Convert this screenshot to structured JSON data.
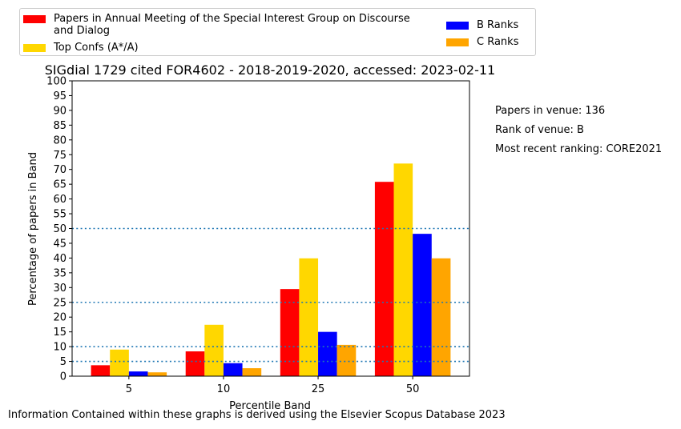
{
  "legend": {
    "items": [
      {
        "label": "Papers in Annual Meeting of the Special Interest Group on Discourse and Dialog",
        "color": "#ff0000"
      },
      {
        "label": "Top Confs (A*/A)",
        "color": "#ffd700"
      },
      {
        "label": "B Ranks",
        "color": "#0000ff"
      },
      {
        "label": "C Ranks",
        "color": "#ffa500"
      }
    ]
  },
  "notes": {
    "papers_in_venue": "Papers in venue: 136",
    "rank_of_venue": "Rank of venue: B",
    "most_recent_ranking": "Most recent ranking: CORE2021"
  },
  "footer": "Information Contained within these graphs is derived using the Elsevier Scopus Database 2023",
  "chart_data": {
    "type": "bar",
    "title": "SIGdial 1729 cited FOR4602 - 2018-2019-2020, accessed: 2023-02-11",
    "xlabel": "Percentile Band",
    "ylabel": "Percentage of papers in Band",
    "categories": [
      "5",
      "10",
      "25",
      "50"
    ],
    "ylim": [
      0,
      100
    ],
    "yticks": [
      0,
      5,
      10,
      15,
      20,
      25,
      30,
      35,
      40,
      45,
      50,
      55,
      60,
      65,
      70,
      75,
      80,
      85,
      90,
      95,
      100
    ],
    "reference_lines": [
      5,
      10,
      25,
      50
    ],
    "series": [
      {
        "name": "Papers in Annual Meeting of the Special Interest Group on Discourse and Dialog",
        "color": "#ff0000",
        "values": [
          3.7,
          8.4,
          29.5,
          65.8
        ]
      },
      {
        "name": "Top Confs (A*/A)",
        "color": "#ffd700",
        "values": [
          9.0,
          17.4,
          39.9,
          72.0
        ]
      },
      {
        "name": "B Ranks",
        "color": "#0000ff",
        "values": [
          1.6,
          4.4,
          15.0,
          48.2
        ]
      },
      {
        "name": "C Ranks",
        "color": "#ffa500",
        "values": [
          1.3,
          2.7,
          10.6,
          39.9
        ]
      }
    ]
  }
}
